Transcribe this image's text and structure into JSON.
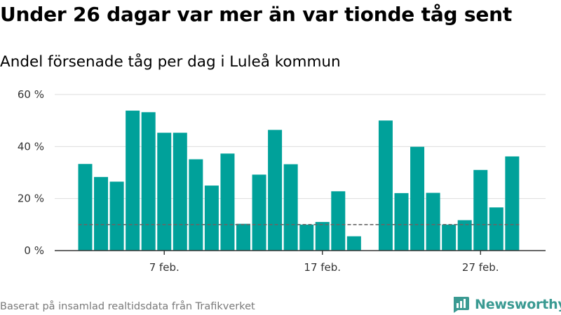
{
  "page": {
    "title": "Under 26 dagar var mer än var tionde tåg sent",
    "subtitle": "Andel försenade tåg per dag i Luleå kommun",
    "footer": "Baserat på insamlad realtidsdata från Trafikverket",
    "brand": "Newsworthy"
  },
  "colors": {
    "bar": "#00a19a",
    "reference_line": "#666666",
    "grid": "#dddddd",
    "axis": "#333333",
    "brand": "#3a9a92"
  },
  "chart_data": {
    "type": "bar",
    "x": [
      "2 feb.",
      "3 feb.",
      "4 feb.",
      "5 feb.",
      "6 feb.",
      "7 feb.",
      "8 feb.",
      "9 feb.",
      "10 feb.",
      "11 feb.",
      "12 feb.",
      "13 feb.",
      "14 feb.",
      "15 feb.",
      "16 feb.",
      "17 feb.",
      "18 feb.",
      "19 feb.",
      "20 feb.",
      "21 feb.",
      "22 feb.",
      "23 feb.",
      "24 feb.",
      "25 feb.",
      "26 feb.",
      "27 feb.",
      "28 feb.",
      "1 mars"
    ],
    "values": [
      33.3,
      28.3,
      26.5,
      53.8,
      53.2,
      45.3,
      45.3,
      35.1,
      25.0,
      37.3,
      10.3,
      29.2,
      46.4,
      33.2,
      10.0,
      11.0,
      22.8,
      5.5,
      null,
      50.0,
      22.1,
      39.9,
      22.2,
      10.0,
      11.7,
      31.0,
      16.6,
      36.2
    ],
    "xticks": [
      "7 feb.",
      "17 feb.",
      "27 feb."
    ],
    "yticks": [
      0,
      20,
      40,
      60
    ],
    "ytick_labels": [
      "0 %",
      "20 %",
      "40 %",
      "60 %"
    ],
    "ylim": [
      0,
      60
    ],
    "reference_line": 10,
    "grid": true
  }
}
